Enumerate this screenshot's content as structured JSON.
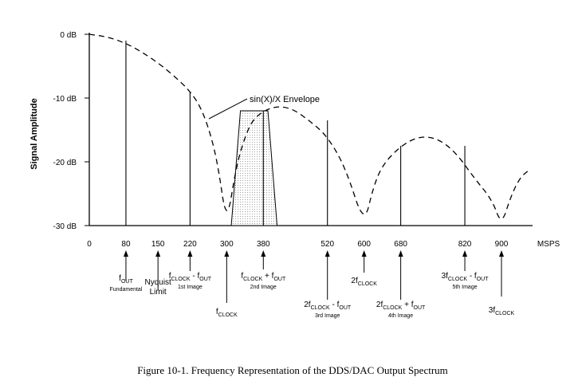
{
  "chart_data": {
    "type": "line",
    "ylabel": "Signal Amplitude",
    "xlabel": "MSPS",
    "caption": "Figure 10-1. Frequency Representation of the DDS/DAC Output Spectrum",
    "x_ticks": [
      "0",
      "80",
      "150",
      "220",
      "300",
      "380",
      "520",
      "600",
      "680",
      "820",
      "900"
    ],
    "y_ticks": [
      "0 dB",
      "-10 dB",
      "-20 dB",
      "-30 dB"
    ],
    "xlim": [
      0,
      1000
    ],
    "ylim": [
      -30,
      0
    ],
    "envelope": {
      "label": "sin(X)/X Envelope",
      "points": [
        [
          0,
          0
        ],
        [
          40,
          -0.4
        ],
        [
          80,
          -1.4
        ],
        [
          120,
          -3
        ],
        [
          160,
          -5
        ],
        [
          200,
          -7.5
        ],
        [
          220,
          -9
        ],
        [
          240,
          -11
        ],
        [
          260,
          -14.5
        ],
        [
          280,
          -20
        ],
        [
          300,
          -30
        ],
        [
          320,
          -21
        ],
        [
          340,
          -16
        ],
        [
          360,
          -13
        ],
        [
          400,
          -11.3
        ],
        [
          440,
          -11.5
        ],
        [
          480,
          -13.5
        ],
        [
          520,
          -16
        ],
        [
          560,
          -21
        ],
        [
          600,
          -30
        ],
        [
          620,
          -24
        ],
        [
          640,
          -20.5
        ],
        [
          680,
          -17.5
        ],
        [
          720,
          -16
        ],
        [
          760,
          -16.3
        ],
        [
          800,
          -18.5
        ],
        [
          840,
          -22.5
        ],
        [
          880,
          -26
        ],
        [
          900,
          -30
        ],
        [
          920,
          -25.5
        ],
        [
          940,
          -22.5
        ],
        [
          960,
          -21.3
        ]
      ]
    },
    "spectral_lines": [
      {
        "x": 80,
        "y": -1
      },
      {
        "x": 220,
        "y": -9
      },
      {
        "x": 380,
        "y": -12
      },
      {
        "x": 520,
        "y": -13.5
      },
      {
        "x": 680,
        "y": -17.5
      },
      {
        "x": 820,
        "y": -17.5
      }
    ],
    "filter_band": {
      "points": [
        [
          310,
          -30
        ],
        [
          330,
          -12
        ],
        [
          390,
          -12
        ],
        [
          410,
          -30
        ]
      ]
    },
    "annotations": [
      {
        "x": 80,
        "main": "f",
        "sub": "OUT",
        "rest": "",
        "sub2": "",
        "note": "Fundamental"
      },
      {
        "x": 150,
        "main": "Nyquist",
        "sub": "",
        "rest": "",
        "sub2": "",
        "note": "",
        "line2": "Limit"
      },
      {
        "x": 220,
        "main": "f",
        "sub": "CLOCK",
        "rest": " - f",
        "sub2": "OUT",
        "note": "1st Image"
      },
      {
        "x": 300,
        "main": "f",
        "sub": "CLOCK",
        "rest": "",
        "sub2": "",
        "note": ""
      },
      {
        "x": 380,
        "main": "f",
        "sub": "CLOCK",
        "rest": " + f",
        "sub2": "OUT",
        "note": "2nd Image"
      },
      {
        "x": 520,
        "main": "2f",
        "sub": "CLOCK",
        "rest": " - f",
        "sub2": "OUT",
        "note": "3rd Image"
      },
      {
        "x": 600,
        "main": "2f",
        "sub": "CLOCK",
        "rest": "",
        "sub2": "",
        "note": ""
      },
      {
        "x": 680,
        "main": "2f",
        "sub": "CLOCK",
        "rest": " + f",
        "sub2": "OUT",
        "note": "4th Image"
      },
      {
        "x": 820,
        "main": "3f",
        "sub": "CLOCK",
        "rest": " - f",
        "sub2": "OUT",
        "note": "5th Image"
      },
      {
        "x": 900,
        "main": "3f",
        "sub": "CLOCK",
        "rest": "",
        "sub2": "",
        "note": ""
      }
    ]
  }
}
